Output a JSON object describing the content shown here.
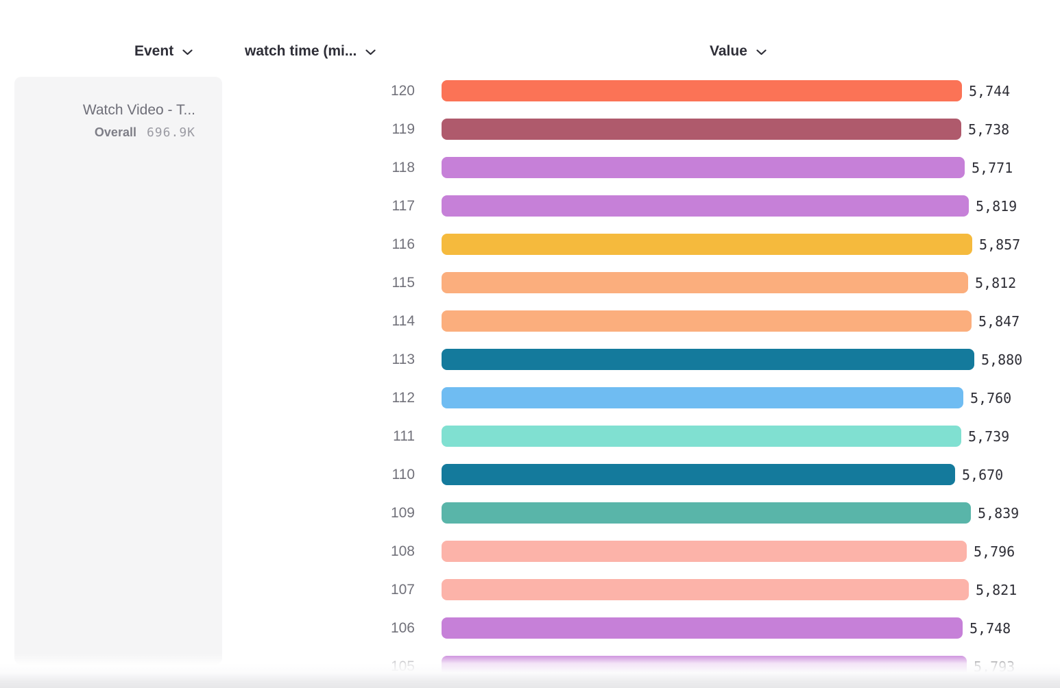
{
  "columns": {
    "event_label": "Event",
    "measure_label": "watch time (mi...",
    "value_label": "Value"
  },
  "legend": {
    "event_name": "Watch Video - T...",
    "overall_label": "Overall",
    "overall_value": "696.9K"
  },
  "chart_data": {
    "type": "bar",
    "orientation": "horizontal",
    "group_label": "watch time (mi...",
    "value_axis_label": "Value",
    "xlim": [
      0,
      5880
    ],
    "categories": [
      "120",
      "119",
      "118",
      "117",
      "116",
      "115",
      "114",
      "113",
      "112",
      "111",
      "110",
      "109",
      "108",
      "107",
      "106",
      "105"
    ],
    "values": [
      5744,
      5738,
      5771,
      5819,
      5857,
      5812,
      5847,
      5880,
      5760,
      5739,
      5670,
      5839,
      5796,
      5821,
      5748,
      5793
    ],
    "value_labels": [
      "5,744",
      "5,738",
      "5,771",
      "5,819",
      "5,857",
      "5,812",
      "5,847",
      "5,880",
      "5,760",
      "5,739",
      "5,670",
      "5,839",
      "5,796",
      "5,821",
      "5,748",
      "5,793"
    ],
    "bar_colors": [
      "#FB7356",
      "#AF5A6C",
      "#C680D8",
      "#C680D8",
      "#F5BA3D",
      "#FBAE7D",
      "#FBAE7D",
      "#147A9C",
      "#6FBCF2",
      "#80E0D1",
      "#147A9C",
      "#59B5A9",
      "#FCB3A9",
      "#FCB3A9",
      "#C680D8",
      "#C680D8"
    ]
  },
  "colors": {
    "header_text": "#2E2E37",
    "category_label": "#71717A",
    "value_text": "#2D2D35",
    "legend_bg": "#F5F5F6",
    "legend_title": "#6E6E78",
    "overall_label": "#7E7E87",
    "overall_value": "#9B9BA3",
    "bottom_fade": "#E7E7E9"
  }
}
